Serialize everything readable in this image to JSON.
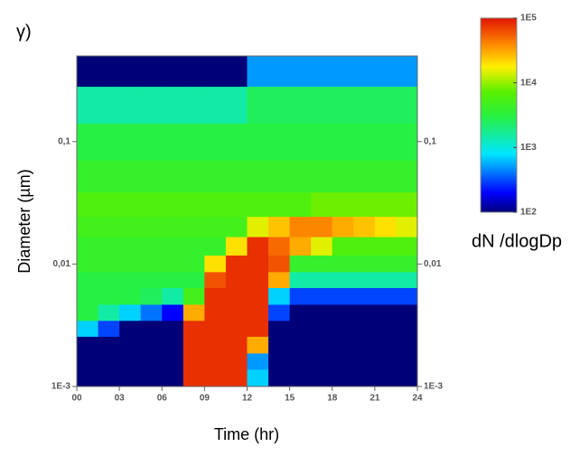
{
  "chart_data": {
    "type": "heatmap",
    "title": "γ)",
    "xlabel": "Time (hr)",
    "ylabel": "Diameter (µm)",
    "colorbar_label": "dN /dlogDp",
    "x": [
      0.75,
      2.25,
      3.75,
      5.25,
      6.75,
      8.25,
      9.75,
      11.25,
      12.75,
      14.25,
      15.75,
      17.25,
      18.75,
      20.25,
      21.75,
      23.25
    ],
    "y": [
      0.0012,
      0.0016,
      0.0022,
      0.003,
      0.004,
      0.0055,
      0.0075,
      0.01,
      0.014,
      0.02,
      0.03,
      0.05,
      0.1,
      0.2,
      0.4
    ],
    "z": [
      [
        50,
        50,
        50,
        50,
        50,
        80000,
        80000,
        80000,
        700,
        50,
        50,
        50,
        50,
        50,
        50,
        50
      ],
      [
        50,
        50,
        50,
        50,
        50,
        80000,
        80000,
        80000,
        500,
        50,
        50,
        50,
        50,
        50,
        50,
        50
      ],
      [
        50,
        50,
        50,
        50,
        50,
        80000,
        80000,
        80000,
        30000,
        50,
        50,
        50,
        50,
        50,
        50,
        50
      ],
      [
        700,
        300,
        50,
        50,
        50,
        80000,
        80000,
        80000,
        80000,
        50,
        50,
        50,
        50,
        50,
        50,
        50
      ],
      [
        3000,
        1500,
        700,
        400,
        200,
        30000,
        80000,
        80000,
        80000,
        300,
        50,
        50,
        50,
        50,
        50,
        100
      ],
      [
        3000,
        3000,
        3000,
        2500,
        1500,
        5000,
        80000,
        80000,
        80000,
        700,
        300,
        300,
        300,
        300,
        300,
        300
      ],
      [
        3000,
        3000,
        3000,
        3000,
        3000,
        3000,
        60000,
        80000,
        80000,
        30000,
        1500,
        1500,
        1500,
        1500,
        1500,
        1500
      ],
      [
        4000,
        4000,
        4000,
        4000,
        4000,
        4000,
        20000,
        80000,
        80000,
        60000,
        4000,
        4000,
        4000,
        4000,
        4000,
        4000
      ],
      [
        4000,
        4000,
        4000,
        4000,
        4000,
        4000,
        4000,
        20000,
        80000,
        50000,
        30000,
        15000,
        6000,
        6000,
        6000,
        6000
      ],
      [
        5000,
        5000,
        5000,
        5000,
        5000,
        5000,
        5000,
        5000,
        15000,
        25000,
        40000,
        40000,
        30000,
        25000,
        20000,
        15000
      ],
      [
        6000,
        6000,
        6000,
        6000,
        6000,
        6000,
        6000,
        6000,
        6000,
        6000,
        6000,
        8000,
        8000,
        8000,
        8000,
        8000
      ],
      [
        4000,
        4000,
        4000,
        4000,
        4000,
        4000,
        4000,
        4000,
        4000,
        4000,
        4000,
        4000,
        4000,
        4000,
        4000,
        4000
      ],
      [
        3000,
        3000,
        3000,
        3000,
        3000,
        3000,
        3000,
        3000,
        3000,
        3000,
        3000,
        3000,
        3000,
        3000,
        3000,
        3000
      ],
      [
        1500,
        1500,
        1500,
        1500,
        1500,
        1500,
        1500,
        1500,
        2500,
        2500,
        2500,
        2500,
        2500,
        2500,
        2500,
        2500
      ],
      [
        50,
        50,
        50,
        50,
        50,
        50,
        50,
        50,
        500,
        500,
        500,
        500,
        500,
        500,
        500,
        500
      ]
    ],
    "xlim": [
      0,
      24
    ],
    "xticks": [
      {
        "value": 0,
        "label": "00"
      },
      {
        "value": 3,
        "label": "03"
      },
      {
        "value": 6,
        "label": "06"
      },
      {
        "value": 9,
        "label": "09"
      },
      12,
      15,
      18,
      21,
      24
    ],
    "ylim": [
      0.001,
      0.5
    ],
    "ylog": true,
    "yticks": [
      {
        "value": 0.001,
        "label": "1E-3"
      },
      {
        "value": 0.01,
        "label": "0,01"
      },
      {
        "value": 0.1,
        "label": "0,1"
      }
    ],
    "clim": [
      100,
      100000
    ],
    "clog": true,
    "cticks": [
      {
        "value": 100,
        "label": "1E2"
      },
      {
        "value": 1000,
        "label": "1E3"
      },
      {
        "value": 10000,
        "label": "1E4"
      },
      {
        "value": 100000,
        "label": "1E5"
      }
    ]
  }
}
